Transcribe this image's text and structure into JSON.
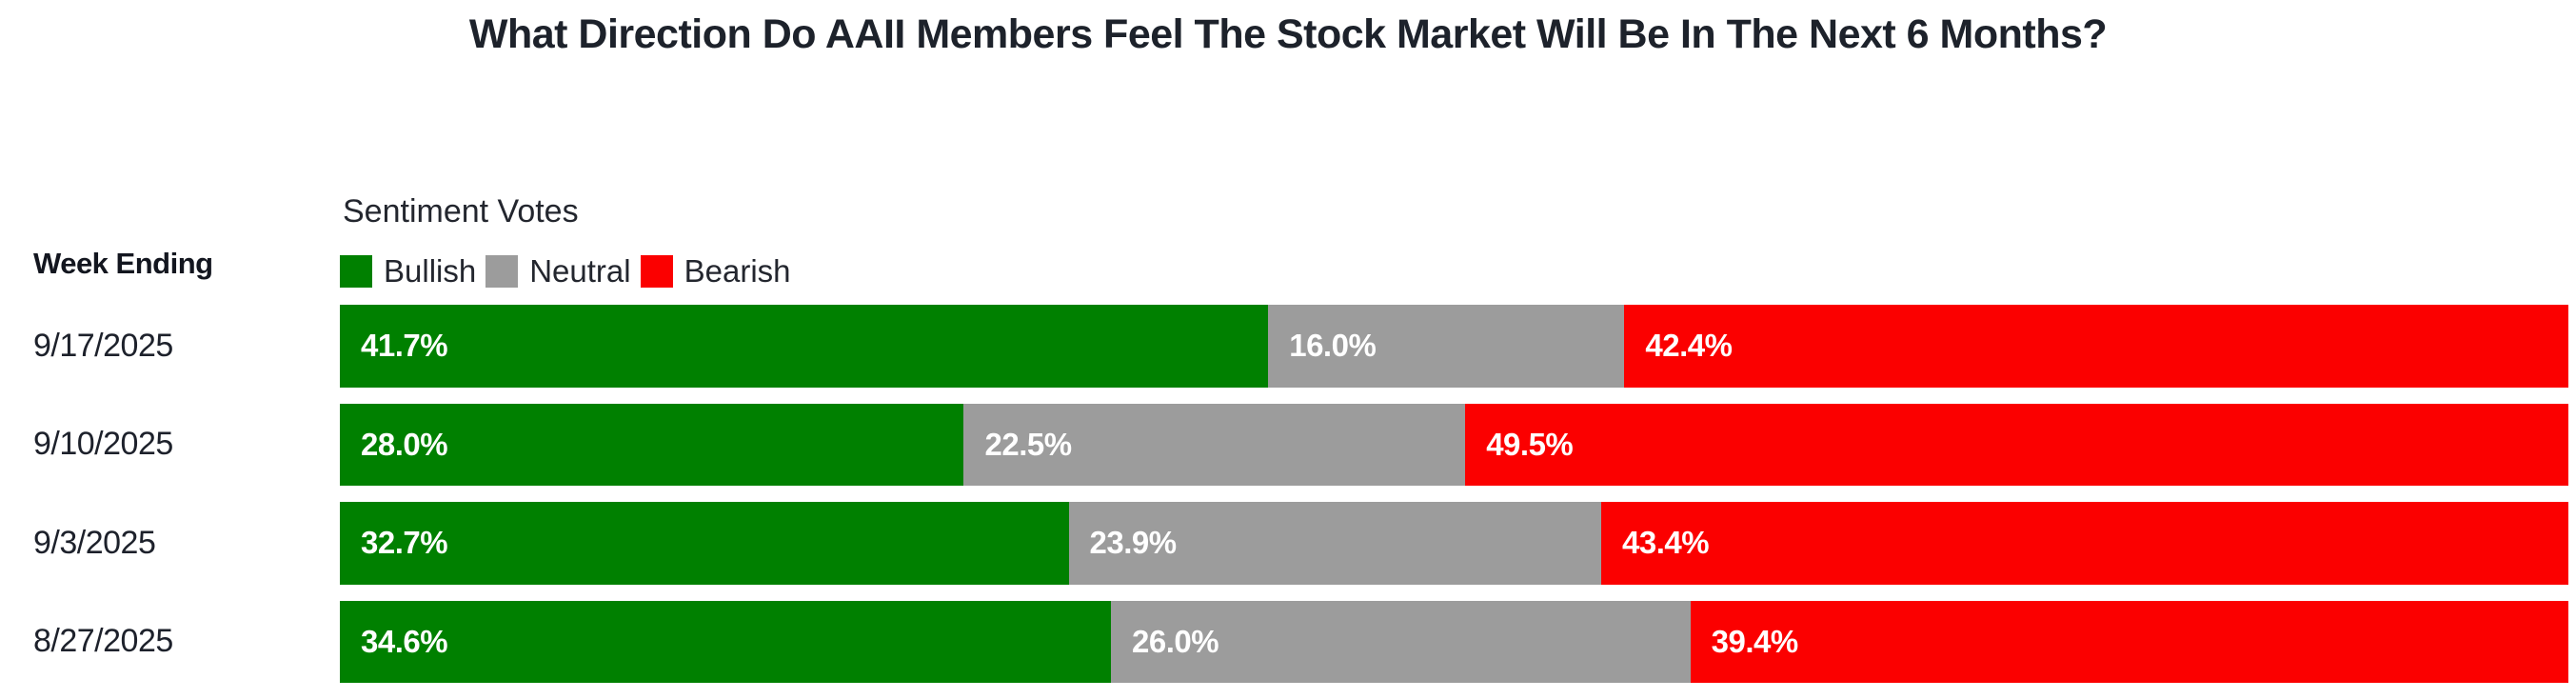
{
  "page": {
    "background": "#ffffff"
  },
  "colors": {
    "bullish_green": "#008000",
    "neutral_gray": "#9c9c9c",
    "bearish_red": "#fb0000",
    "title_text": "#1d222b",
    "label_text": "#1d212b",
    "bar_value_text": "#ffffff"
  },
  "chart_data": {
    "type": "bar",
    "orientation": "horizontal",
    "stacked": true,
    "title": "What Direction Do AAII Members Feel The Stock Market Will Be In The Next 6 Months?",
    "legend_title": "Sentiment Votes",
    "row_axis_label": "Week Ending",
    "categories": [
      "9/17/2025",
      "9/10/2025",
      "9/3/2025",
      "8/27/2025"
    ],
    "series": [
      {
        "name": "Bullish",
        "color": "#008000",
        "values": [
          41.7,
          28.0,
          32.7,
          34.6
        ]
      },
      {
        "name": "Neutral",
        "color": "#9c9c9c",
        "values": [
          16.0,
          22.5,
          23.9,
          26.0
        ]
      },
      {
        "name": "Bearish",
        "color": "#fb0000",
        "values": [
          42.4,
          49.5,
          43.4,
          39.4
        ]
      }
    ],
    "value_format": "percent_one_decimal",
    "value_labels_inside_bars": true,
    "xlim": [
      0,
      100
    ],
    "legend_position": "top-left",
    "grid": false,
    "axes_shown": false
  }
}
